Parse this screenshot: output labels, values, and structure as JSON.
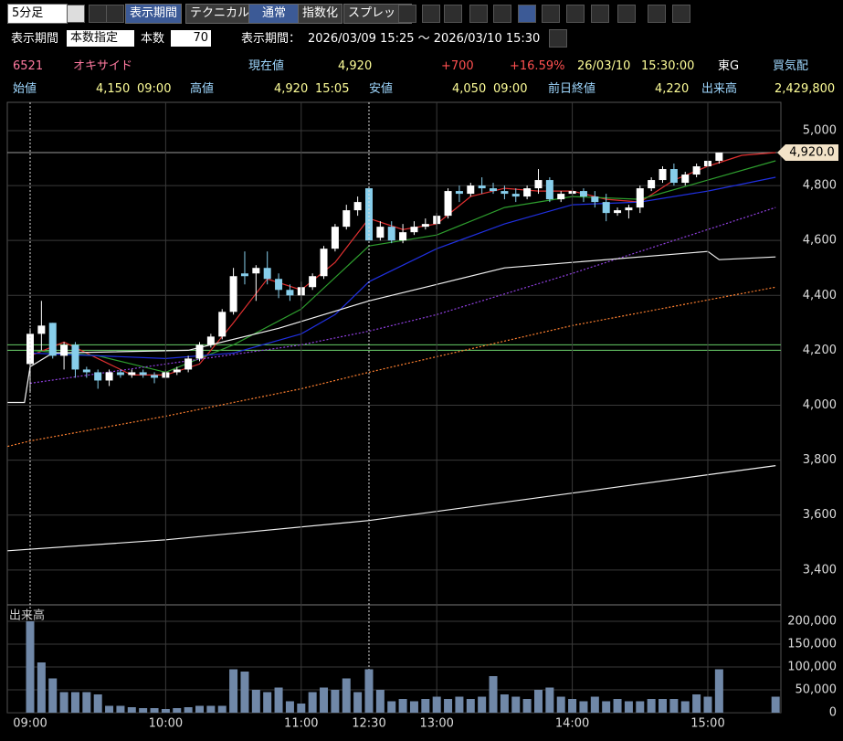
{
  "toolbar": {
    "interval": "5分足",
    "buttons": [
      "表示期間",
      "テクニカル",
      "通常",
      "指数化",
      "スプレッド"
    ]
  },
  "period_bar": {
    "label": "表示期間",
    "mode": "本数指定",
    "count_label": "本数",
    "count": 70,
    "range_label": "表示期間：",
    "range": "2026/03/09 15:25 ～ 2026/03/10 15:30"
  },
  "quote": {
    "code": "6521",
    "name": "オキサイド",
    "price_label": "現在値",
    "price": "4,920",
    "change": "+700",
    "change_pct": "+16.59%",
    "date": "26/03/10",
    "time": "15:30:00",
    "market": "東G",
    "status": "買気配"
  },
  "ohlc": [
    {
      "label": "始値",
      "value": "4,150",
      "time": "09:00"
    },
    {
      "label": "高値",
      "value": "4,920",
      "time": "15:05"
    },
    {
      "label": "安値",
      "value": "4,050",
      "time": "09:00"
    },
    {
      "label": "前日終値",
      "value": "4,220"
    },
    {
      "label": "出来高",
      "value": "2,429,800"
    }
  ],
  "chart_data": [
    {
      "type": "candlestick",
      "up_color": "#ffffff",
      "down_color": "#87ceeb",
      "xlim": [
        -2,
        67
      ],
      "ylim": [
        3273,
        5103
      ],
      "yticks": [
        {
          "value": 3400,
          "label": "3,400"
        },
        {
          "value": 3600,
          "label": "3,600"
        },
        {
          "value": 3800,
          "label": "3,800"
        },
        {
          "value": 4000,
          "label": "4,000"
        },
        {
          "value": 4200,
          "label": "4,200"
        },
        {
          "value": 4400,
          "label": "4,400"
        },
        {
          "value": 4600,
          "label": "4,600"
        },
        {
          "value": 4800,
          "label": "4,800"
        },
        {
          "value": 5000,
          "label": "5,000"
        }
      ],
      "grid": true,
      "current_price": {
        "value": 4920,
        "label": "4,920.0"
      },
      "ref_lines": [
        {
          "value": 4920,
          "color": "#9a9a9a"
        },
        {
          "value": 4220,
          "color": "#66cc66"
        },
        {
          "value": 4200,
          "color": "#66cc66"
        }
      ],
      "open": [
        4150,
        4260,
        4300,
        4180,
        4220,
        4130,
        4120,
        4090,
        4120,
        4110,
        4120,
        4110,
        4100,
        4120,
        4130,
        4170,
        4220,
        4250,
        4340,
        4480,
        4480,
        4500,
        4460,
        4420,
        4400,
        4430,
        4470,
        4570,
        4650,
        4710,
        4790,
        4610,
        4650,
        4600,
        4630,
        4650,
        4660,
        4690,
        4780,
        4770,
        4800,
        4790,
        4780,
        4770,
        4760,
        4790,
        4820,
        4750,
        4770,
        4780,
        4760,
        4740,
        4700,
        4710,
        4720,
        4790,
        4820,
        4860,
        4810,
        4840,
        4870,
        4890,
        null,
        null,
        null,
        null,
        null
      ],
      "high": [
        4280,
        4380,
        4300,
        4230,
        4230,
        4140,
        4130,
        4130,
        4130,
        4130,
        4130,
        4120,
        4130,
        4140,
        4180,
        4230,
        4260,
        4350,
        4500,
        4560,
        4510,
        4560,
        4480,
        4440,
        4450,
        4480,
        4580,
        4660,
        4730,
        4760,
        4790,
        4670,
        4670,
        4660,
        4670,
        4680,
        4700,
        4790,
        4800,
        4810,
        4830,
        4810,
        4800,
        4790,
        4800,
        4860,
        4830,
        4780,
        4790,
        4790,
        4780,
        4770,
        4720,
        4730,
        4800,
        4830,
        4870,
        4880,
        4850,
        4880,
        4900,
        4920,
        null,
        null,
        null,
        null,
        null
      ],
      "low": [
        4050,
        4200,
        4170,
        4130,
        4100,
        4100,
        4060,
        4070,
        4100,
        4100,
        4100,
        4080,
        4100,
        4110,
        4120,
        4160,
        4210,
        4240,
        4330,
        4440,
        4380,
        4440,
        4390,
        4380,
        4380,
        4420,
        4460,
        4560,
        4640,
        4690,
        4600,
        4600,
        4590,
        4590,
        4620,
        4640,
        4640,
        4680,
        4740,
        4760,
        4770,
        4770,
        4750,
        4740,
        4750,
        4770,
        4740,
        4740,
        4760,
        4740,
        4720,
        4670,
        4690,
        4680,
        4700,
        4780,
        4810,
        4800,
        4800,
        4830,
        4860,
        4880,
        null,
        null,
        null,
        null,
        null
      ],
      "close": [
        4260,
        4290,
        4180,
        4220,
        4130,
        4120,
        4090,
        4120,
        4110,
        4120,
        4110,
        4100,
        4120,
        4130,
        4170,
        4220,
        4250,
        4340,
        4470,
        4470,
        4500,
        4460,
        4420,
        4400,
        4430,
        4470,
        4570,
        4650,
        4710,
        4740,
        4600,
        4650,
        4600,
        4630,
        4650,
        4660,
        4690,
        4780,
        4770,
        4800,
        4790,
        4780,
        4770,
        4760,
        4790,
        4820,
        4750,
        4770,
        4780,
        4760,
        4740,
        4700,
        4710,
        4720,
        4790,
        4820,
        4860,
        4810,
        4840,
        4870,
        4890,
        4920,
        null,
        null,
        null,
        null,
        null
      ],
      "overlays": [
        {
          "color": "#e03030",
          "dash": false,
          "x": [
            0,
            3,
            6,
            9,
            12,
            15,
            18,
            21,
            24,
            27,
            30,
            33,
            36,
            39,
            42,
            45,
            48,
            51,
            54,
            57,
            60,
            63,
            66
          ],
          "values": [
            4180,
            4230,
            4170,
            4110,
            4110,
            4150,
            4300,
            4460,
            4420,
            4520,
            4680,
            4640,
            4660,
            4760,
            4790,
            4780,
            4780,
            4750,
            4740,
            4820,
            4870,
            4910,
            4920
          ]
        },
        {
          "color": "#2e9e2e",
          "dash": false,
          "x": [
            0,
            6,
            12,
            18,
            24,
            30,
            36,
            42,
            48,
            54,
            60,
            66
          ],
          "values": [
            4200,
            4180,
            4120,
            4220,
            4350,
            4580,
            4620,
            4720,
            4760,
            4750,
            4820,
            4890
          ]
        },
        {
          "color": "#2030e0",
          "dash": false,
          "x": [
            0,
            6,
            12,
            18,
            24,
            27,
            30,
            36,
            42,
            48,
            54,
            60,
            66
          ],
          "values": [
            4190,
            4180,
            4170,
            4190,
            4260,
            4330,
            4450,
            4570,
            4660,
            4730,
            4740,
            4780,
            4830
          ]
        },
        {
          "color": "#9040e0",
          "dash": true,
          "x": [
            0,
            12,
            24,
            30,
            36,
            48,
            60,
            66
          ],
          "values": [
            4080,
            4150,
            4220,
            4270,
            4330,
            4480,
            4640,
            4720
          ]
        },
        {
          "color": "#f0f0f0",
          "dash": false,
          "x": [
            -2,
            -0.5,
            0,
            2,
            14,
            22,
            30,
            36,
            42,
            48,
            60,
            61,
            66
          ],
          "values": [
            4010,
            4010,
            4140,
            4190,
            4200,
            4280,
            4380,
            4440,
            4500,
            4520,
            4560,
            4530,
            4540
          ]
        },
        {
          "color": "#ff8030",
          "dash": true,
          "x": [
            -2,
            0,
            12,
            24,
            30,
            48,
            66
          ],
          "values": [
            3850,
            3870,
            3960,
            4060,
            4120,
            4290,
            4430
          ]
        },
        {
          "color": "#f0f0f0",
          "dash": false,
          "x": [
            -2,
            12,
            30,
            48,
            66
          ],
          "values": [
            3470,
            3510,
            3580,
            3680,
            3780
          ]
        }
      ]
    },
    {
      "type": "bar",
      "title": "出来高",
      "color": "#7088a8",
      "xlim": [
        -2,
        67
      ],
      "ylim": [
        0,
        236000
      ],
      "yticks": [
        0,
        {
          "value": 50000,
          "label": "50,000"
        },
        {
          "value": 100000,
          "label": "100,000"
        },
        {
          "value": 150000,
          "label": "150,000"
        },
        {
          "value": 200000,
          "label": "200,000"
        }
      ],
      "categories": [
        "09:00",
        null,
        null,
        null,
        null,
        null,
        null,
        null,
        null,
        null,
        null,
        null,
        "10:00",
        null,
        null,
        null,
        null,
        null,
        null,
        null,
        null,
        null,
        null,
        null,
        "11:00",
        null,
        null,
        null,
        null,
        null,
        "12:30",
        null,
        null,
        null,
        null,
        null,
        "13:00",
        null,
        null,
        null,
        null,
        null,
        null,
        null,
        null,
        null,
        null,
        null,
        "14:00",
        null,
        null,
        null,
        null,
        null,
        null,
        null,
        null,
        null,
        null,
        null,
        "15:00",
        null,
        null,
        null,
        null,
        null,
        null
      ],
      "values": [
        200000,
        110000,
        75000,
        45000,
        45000,
        45000,
        40000,
        15000,
        15000,
        12000,
        10000,
        10000,
        8000,
        10000,
        12000,
        15000,
        15000,
        15000,
        95000,
        90000,
        50000,
        45000,
        55000,
        25000,
        20000,
        45000,
        55000,
        50000,
        75000,
        45000,
        95000,
        50000,
        25000,
        30000,
        25000,
        30000,
        35000,
        30000,
        35000,
        30000,
        35000,
        80000,
        40000,
        35000,
        30000,
        50000,
        55000,
        35000,
        30000,
        25000,
        35000,
        25000,
        30000,
        25000,
        25000,
        30000,
        30000,
        30000,
        25000,
        40000,
        35000,
        95000,
        null,
        null,
        null,
        null,
        35000
      ]
    }
  ]
}
